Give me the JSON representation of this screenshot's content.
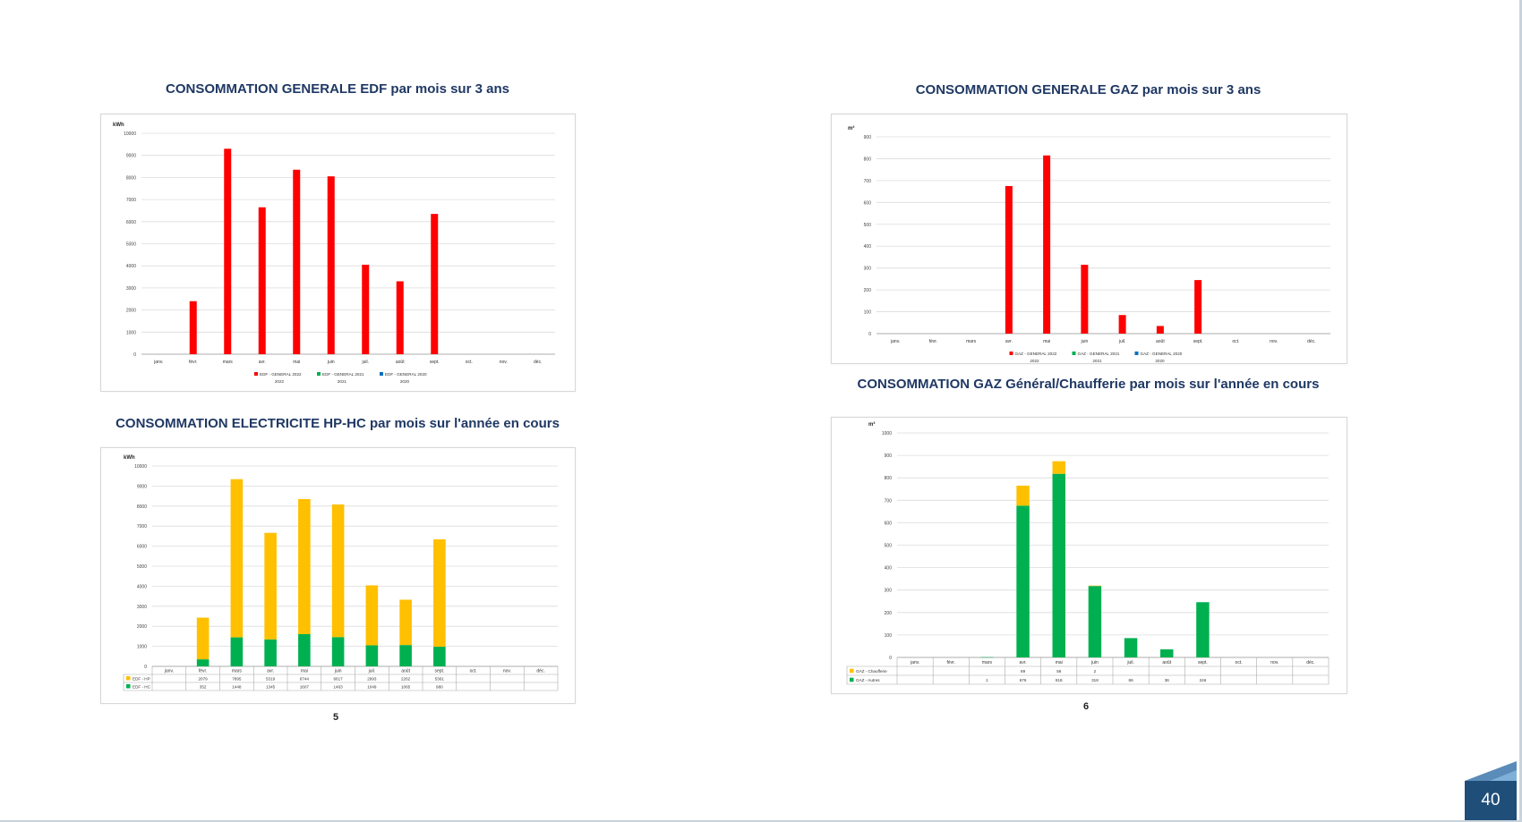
{
  "page_number": "40",
  "colors": {
    "red": "#ff0000",
    "green": "#00b050",
    "blue": "#0070c0",
    "orange": "#ffc000",
    "title": "#1f3864"
  },
  "chart_data": [
    {
      "id": "edf",
      "type": "bar",
      "title": "CONSOMMATION GENERALE EDF par mois sur 3 ans",
      "ylabel": "kWh",
      "ylim": [
        0,
        10000
      ],
      "yticks": [
        0,
        1000,
        2000,
        3000,
        4000,
        5000,
        6000,
        7000,
        8000,
        9000,
        10000
      ],
      "categories": [
        "janv.",
        "févr.",
        "mars",
        "avr.",
        "mai",
        "juin",
        "juil.",
        "août",
        "sept.",
        "oct.",
        "nov.",
        "déc."
      ],
      "series": [
        {
          "name": "EDF - GENERAL 2022",
          "year": "2022",
          "color": "#ff0000",
          "values": [
            null,
            2400,
            9300,
            6650,
            8350,
            8050,
            4050,
            3300,
            6350,
            null,
            null,
            null
          ]
        },
        {
          "name": "EDF - GENERAL 2021",
          "year": "2021",
          "color": "#00b050",
          "values": [
            null,
            null,
            null,
            null,
            null,
            null,
            null,
            null,
            null,
            null,
            null,
            null
          ]
        },
        {
          "name": "EDF - GENERAL 2020",
          "year": "2020",
          "color": "#0070c0",
          "values": [
            null,
            null,
            null,
            null,
            null,
            null,
            null,
            null,
            null,
            null,
            null,
            null
          ]
        }
      ],
      "legend": "bottom",
      "page": "5"
    },
    {
      "id": "gaz",
      "type": "bar",
      "title": "CONSOMMATION GENERALE GAZ par mois sur 3 ans",
      "ylabel": "m³",
      "ylim": [
        0,
        900
      ],
      "yticks": [
        0,
        100,
        200,
        300,
        400,
        500,
        600,
        700,
        800,
        900
      ],
      "categories": [
        "janv.",
        "févr.",
        "mars",
        "avr.",
        "mai",
        "juin",
        "juil.",
        "août",
        "sept.",
        "oct.",
        "nov.",
        "déc."
      ],
      "series": [
        {
          "name": "GAZ - GENERAL 2022",
          "year": "2022",
          "color": "#ff0000",
          "values": [
            null,
            null,
            null,
            675,
            815,
            315,
            85,
            35,
            245,
            null,
            null,
            null
          ]
        },
        {
          "name": "GAZ - GENERAL 2021",
          "year": "2021",
          "color": "#00b050",
          "values": [
            null,
            null,
            null,
            null,
            null,
            null,
            null,
            null,
            null,
            null,
            null,
            null
          ]
        },
        {
          "name": "GAZ - GENERAL 2020",
          "year": "2020",
          "color": "#0070c0",
          "values": [
            null,
            null,
            null,
            null,
            null,
            null,
            null,
            null,
            null,
            null,
            null,
            null
          ]
        }
      ],
      "legend": "bottom"
    },
    {
      "id": "hphc",
      "type": "bar",
      "stacked": true,
      "title": "CONSOMMATION ELECTRICITE HP-HC par mois sur l'année en cours",
      "ylabel": "kWh",
      "ylim": [
        0,
        10000
      ],
      "yticks": [
        0,
        1000,
        2000,
        3000,
        4000,
        5000,
        6000,
        7000,
        8000,
        9000,
        10000
      ],
      "categories": [
        "janv.",
        "févr.",
        "mars",
        "avr.",
        "mai",
        "juin",
        "juil.",
        "août",
        "sept.",
        "oct.",
        "nov.",
        "déc."
      ],
      "series": [
        {
          "name": "EDF - HC",
          "color": "#00b050",
          "values": [
            null,
            352,
            1448,
            1345,
            1607,
            1463,
            1049,
            1065,
            980,
            null,
            null,
            null
          ]
        },
        {
          "name": "EDF - HP",
          "color": "#ffc000",
          "values": [
            null,
            2079,
            7895,
            5319,
            6744,
            6617,
            2993,
            2262,
            5361,
            null,
            null,
            null
          ]
        }
      ],
      "table": true,
      "page": "5"
    },
    {
      "id": "chauff",
      "type": "bar",
      "stacked": true,
      "title": "CONSOMMATION GAZ Général/Chaufferie par mois sur l'année en cours",
      "ylabel": "m³",
      "ylim": [
        0,
        1000
      ],
      "yticks": [
        0,
        100,
        200,
        300,
        400,
        500,
        600,
        700,
        800,
        900,
        1000
      ],
      "categories": [
        "janv.",
        "févr.",
        "mars",
        "avr.",
        "mai",
        "juin",
        "juil.",
        "août",
        "sept.",
        "oct.",
        "nov.",
        "déc."
      ],
      "series": [
        {
          "name": "GAZ - Autres",
          "color": "#00b050",
          "values": [
            null,
            null,
            1,
            676,
            818,
            318,
            86,
            36,
            246,
            null,
            null,
            null
          ]
        },
        {
          "name": "GAZ - Chaufferie",
          "color": "#ffc000",
          "values": [
            null,
            null,
            null,
            89,
            56,
            2,
            null,
            null,
            null,
            null,
            null,
            null
          ]
        }
      ],
      "table": true,
      "page": "6"
    }
  ]
}
